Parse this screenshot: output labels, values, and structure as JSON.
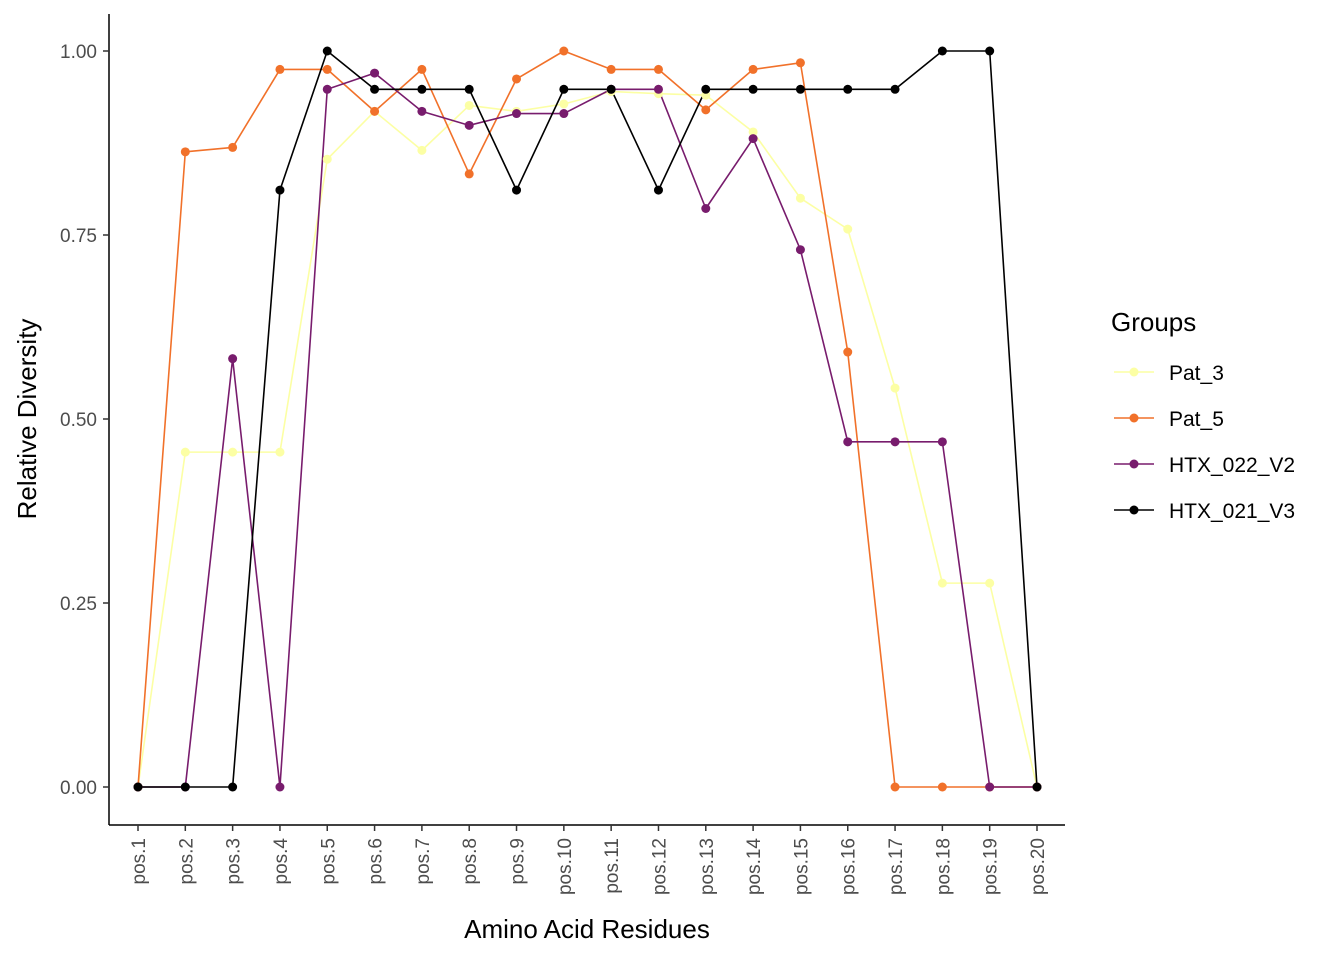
{
  "chart_data": {
    "type": "line",
    "xlabel": "Amino Acid Residues",
    "ylabel": "Relative Diversity",
    "ylim": [
      -0.05,
      1.05
    ],
    "yticks": [
      "0.00",
      "0.25",
      "0.50",
      "0.75",
      "1.00"
    ],
    "grid": false,
    "legend": {
      "title": "Groups",
      "position": "right"
    },
    "categories": [
      "pos.1",
      "pos.2",
      "pos.3",
      "pos.4",
      "pos.5",
      "pos.6",
      "pos.7",
      "pos.8",
      "pos.9",
      "pos.10",
      "pos.11",
      "pos.12",
      "pos.13",
      "pos.14",
      "pos.15",
      "pos.16",
      "pos.17",
      "pos.18",
      "pos.19",
      "pos.20"
    ],
    "series": [
      {
        "name": "Pat_3",
        "color": "#FCFFA4",
        "values": [
          0.0,
          0.455,
          0.455,
          0.455,
          0.853,
          0.918,
          0.865,
          0.926,
          0.918,
          0.928,
          0.945,
          0.942,
          0.94,
          0.89,
          0.8,
          0.758,
          0.542,
          0.277,
          0.277,
          0.0
        ]
      },
      {
        "name": "Pat_5",
        "color": "#F1712A",
        "values": [
          0.0,
          0.863,
          0.869,
          0.975,
          0.975,
          0.918,
          0.975,
          0.833,
          0.962,
          1.0,
          0.975,
          0.975,
          0.92,
          0.975,
          0.984,
          0.591,
          0.0,
          0.0,
          0.0,
          0.0
        ]
      },
      {
        "name": "HTX_022_V2",
        "color": "#781C6D",
        "values": [
          0.0,
          0.0,
          0.582,
          0.0,
          0.948,
          0.97,
          0.918,
          0.899,
          0.915,
          0.915,
          0.948,
          0.948,
          0.786,
          0.881,
          0.73,
          0.469,
          0.469,
          0.469,
          0.0,
          0.0
        ]
      },
      {
        "name": "HTX_021_V3",
        "color": "#000000",
        "values": [
          0.0,
          0.0,
          0.0,
          0.811,
          1.0,
          0.948,
          0.948,
          0.948,
          0.811,
          0.948,
          0.948,
          0.811,
          0.948,
          0.948,
          0.948,
          0.948,
          0.948,
          1.0,
          1.0,
          0.0
        ]
      }
    ]
  }
}
